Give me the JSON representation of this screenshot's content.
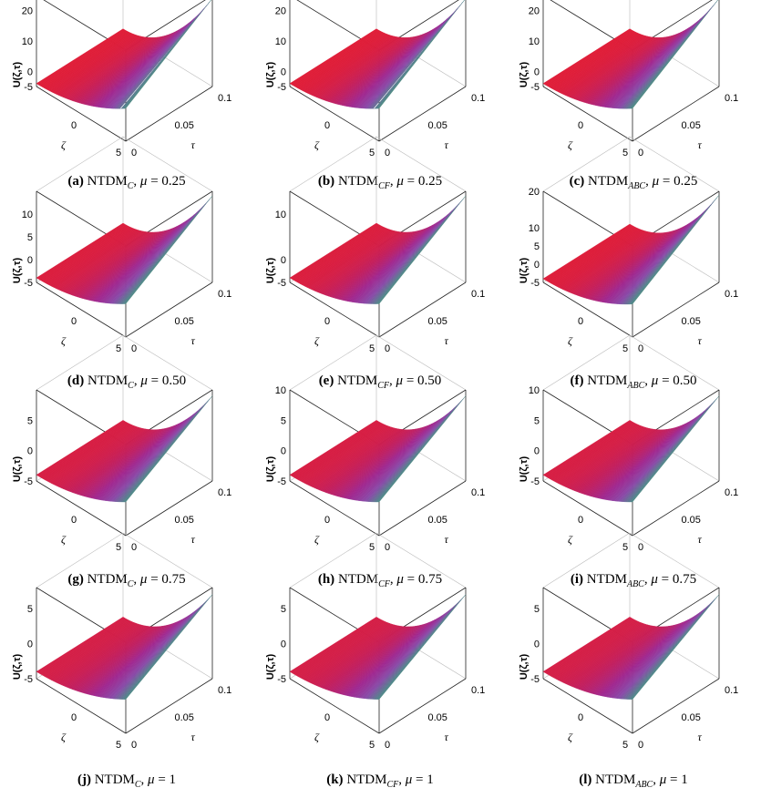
{
  "figure": {
    "colormap": [
      "#e81e2e",
      "#c41f5c",
      "#a02890",
      "#8a4aa8",
      "#4f8a8a",
      "#7a9a40",
      "#d88a20",
      "#f09a10"
    ]
  },
  "chart_data": [
    {
      "id": "a",
      "type": "surface",
      "label": "(a)",
      "method_base": "NTDM",
      "method_sub": "C",
      "sep": ", ",
      "mu_symbol": "μ",
      "mu_eq": " = ",
      "mu": "0.25",
      "ylabel": "U(ζ,τ)",
      "zticks": [
        "-5",
        "0",
        "10",
        "20"
      ],
      "zlim": [
        -5,
        25
      ],
      "zeta_ticks": [
        "0",
        "5"
      ],
      "zeta_label": "ζ",
      "zeta_range": [
        -5,
        5
      ],
      "tau_ticks": [
        "0",
        "0.05",
        "0.1"
      ],
      "tau_label": "τ",
      "tau_range": [
        0,
        0.1
      ]
    },
    {
      "id": "b",
      "type": "surface",
      "label": "(b)",
      "method_base": "NTDM",
      "method_sub": "CF",
      "sep": ", ",
      "mu_symbol": "μ",
      "mu_eq": " = ",
      "mu": "0.25",
      "ylabel": "U(ζ,τ)",
      "zticks": [
        "-5",
        "0",
        "10",
        "20"
      ],
      "zlim": [
        -5,
        25
      ],
      "zeta_ticks": [
        "0",
        "5"
      ],
      "zeta_label": "ζ",
      "zeta_range": [
        -5,
        5
      ],
      "tau_ticks": [
        "0",
        "0.05",
        "0.1"
      ],
      "tau_label": "τ",
      "tau_range": [
        0,
        0.1
      ]
    },
    {
      "id": "c",
      "type": "surface",
      "label": "(c)",
      "method_base": "NTDM",
      "method_sub": "ABC",
      "sep": ", ",
      "mu_symbol": "μ",
      "mu_eq": " = ",
      "mu": "0.25",
      "ylabel": "U(ζ,τ)",
      "zticks": [
        "-5",
        "0",
        "10",
        "20"
      ],
      "zlim": [
        -5,
        25
      ],
      "zeta_ticks": [
        "0",
        "5"
      ],
      "zeta_label": "ζ",
      "zeta_range": [
        -5,
        5
      ],
      "tau_ticks": [
        "0",
        "0.05",
        "0.1"
      ],
      "tau_label": "τ",
      "tau_range": [
        0,
        0.1
      ]
    },
    {
      "id": "d",
      "type": "surface",
      "label": "(d)",
      "method_base": "NTDM",
      "method_sub": "C",
      "sep": ", ",
      "mu_symbol": "μ",
      "mu_eq": " = ",
      "mu": "0.50",
      "ylabel": "U(ζ,τ)",
      "zticks": [
        "-5",
        "0",
        "5",
        "10"
      ],
      "zlim": [
        -5,
        15
      ],
      "zeta_ticks": [
        "0",
        "5"
      ],
      "zeta_label": "ζ",
      "zeta_range": [
        -5,
        5
      ],
      "tau_ticks": [
        "0",
        "0.05",
        "0.1"
      ],
      "tau_label": "τ",
      "tau_range": [
        0,
        0.1
      ]
    },
    {
      "id": "e",
      "type": "surface",
      "label": "(e)",
      "method_base": "NTDM",
      "method_sub": "CF",
      "sep": ", ",
      "mu_symbol": "μ",
      "mu_eq": " = ",
      "mu": "0.50",
      "ylabel": "U(ζ,τ)",
      "zticks": [
        "-5",
        "0",
        "10"
      ],
      "zlim": [
        -5,
        15
      ],
      "zeta_ticks": [
        "0",
        "5"
      ],
      "zeta_label": "ζ",
      "zeta_range": [
        -5,
        5
      ],
      "tau_ticks": [
        "0",
        "0.05",
        "0.1"
      ],
      "tau_label": "τ",
      "tau_range": [
        0,
        0.1
      ]
    },
    {
      "id": "f",
      "type": "surface",
      "label": "(f)",
      "method_base": "NTDM",
      "method_sub": "ABC",
      "sep": ", ",
      "mu_symbol": "μ",
      "mu_eq": " = ",
      "mu": "0.50",
      "ylabel": "U(ζ,τ)",
      "zticks": [
        "-5",
        "0",
        "5",
        "10",
        "20"
      ],
      "zlim": [
        -5,
        20
      ],
      "zeta_ticks": [
        "0",
        "5"
      ],
      "zeta_label": "ζ",
      "zeta_range": [
        -5,
        5
      ],
      "tau_ticks": [
        "0",
        "0.05",
        "0.1"
      ],
      "tau_label": "τ",
      "tau_range": [
        0,
        0.1
      ]
    },
    {
      "id": "g",
      "type": "surface",
      "label": "(g)",
      "method_base": "NTDM",
      "method_sub": "C",
      "sep": ", ",
      "mu_symbol": "μ",
      "mu_eq": " = ",
      "mu": "0.75",
      "ylabel": "U(ζ,τ)",
      "zticks": [
        "-5",
        "0",
        "5"
      ],
      "zlim": [
        -5,
        10
      ],
      "zeta_ticks": [
        "0",
        "5"
      ],
      "zeta_label": "ζ",
      "zeta_range": [
        -5,
        5
      ],
      "tau_ticks": [
        "0",
        "0.05",
        "0.1"
      ],
      "tau_label": "τ",
      "tau_range": [
        0,
        0.1
      ]
    },
    {
      "id": "h",
      "type": "surface",
      "label": "(h)",
      "method_base": "NTDM",
      "method_sub": "CF",
      "sep": ", ",
      "mu_symbol": "μ",
      "mu_eq": " = ",
      "mu": "0.75",
      "ylabel": "U(ζ,τ)",
      "zticks": [
        "-5",
        "0",
        "5",
        "10"
      ],
      "zlim": [
        -5,
        10
      ],
      "zeta_ticks": [
        "0",
        "5"
      ],
      "zeta_label": "ζ",
      "zeta_range": [
        -5,
        5
      ],
      "tau_ticks": [
        "0",
        "0.05",
        "0.1"
      ],
      "tau_label": "τ",
      "tau_range": [
        0,
        0.1
      ]
    },
    {
      "id": "i",
      "type": "surface",
      "label": "(i)",
      "method_base": "NTDM",
      "method_sub": "ABC",
      "sep": ", ",
      "mu_symbol": "μ",
      "mu_eq": " = ",
      "mu": "0.75",
      "ylabel": "U(ζ,τ)",
      "zticks": [
        "-5",
        "0",
        "5",
        "10"
      ],
      "zlim": [
        -5,
        10
      ],
      "zeta_ticks": [
        "0",
        "5"
      ],
      "zeta_label": "ζ",
      "zeta_range": [
        -5,
        5
      ],
      "tau_ticks": [
        "0",
        "0.05",
        "0.1"
      ],
      "tau_label": "τ",
      "tau_range": [
        0,
        0.1
      ]
    },
    {
      "id": "j",
      "type": "surface",
      "label": "(j)",
      "method_base": "NTDM",
      "method_sub": "C",
      "sep": ", ",
      "mu_symbol": "μ",
      "mu_eq": " = ",
      "mu": "1",
      "ylabel": "U(ζ,τ)",
      "zticks": [
        "-5",
        "0",
        "5"
      ],
      "zlim": [
        -5,
        8
      ],
      "zeta_ticks": [
        "0",
        "5"
      ],
      "zeta_label": "ζ",
      "zeta_range": [
        -5,
        5
      ],
      "tau_ticks": [
        "0",
        "0.05",
        "0.1"
      ],
      "tau_label": "τ",
      "tau_range": [
        0,
        0.1
      ]
    },
    {
      "id": "k",
      "type": "surface",
      "label": "(k)",
      "method_base": "NTDM",
      "method_sub": "CF",
      "sep": ", ",
      "mu_symbol": "μ",
      "mu_eq": " = ",
      "mu": "1",
      "ylabel": "U(ζ,τ)",
      "zticks": [
        "-5",
        "0",
        "5"
      ],
      "zlim": [
        -5,
        8
      ],
      "zeta_ticks": [
        "0",
        "5"
      ],
      "zeta_label": "ζ",
      "zeta_range": [
        -5,
        5
      ],
      "tau_ticks": [
        "0",
        "0.05",
        "0.1"
      ],
      "tau_label": "τ",
      "tau_range": [
        0,
        0.1
      ]
    },
    {
      "id": "l",
      "type": "surface",
      "label": "(l)",
      "method_base": "NTDM",
      "method_sub": "ABC",
      "sep": ", ",
      "mu_symbol": "μ",
      "mu_eq": " = ",
      "mu": "1",
      "ylabel": "U(ζ,τ)",
      "zticks": [
        "-5",
        "0",
        "5"
      ],
      "zlim": [
        -5,
        8
      ],
      "zeta_ticks": [
        "0",
        "5"
      ],
      "zeta_label": "ζ",
      "zeta_range": [
        -5,
        5
      ],
      "tau_ticks": [
        "0",
        "0.05",
        "0.1"
      ],
      "tau_label": "τ",
      "tau_range": [
        0,
        0.1
      ]
    }
  ]
}
